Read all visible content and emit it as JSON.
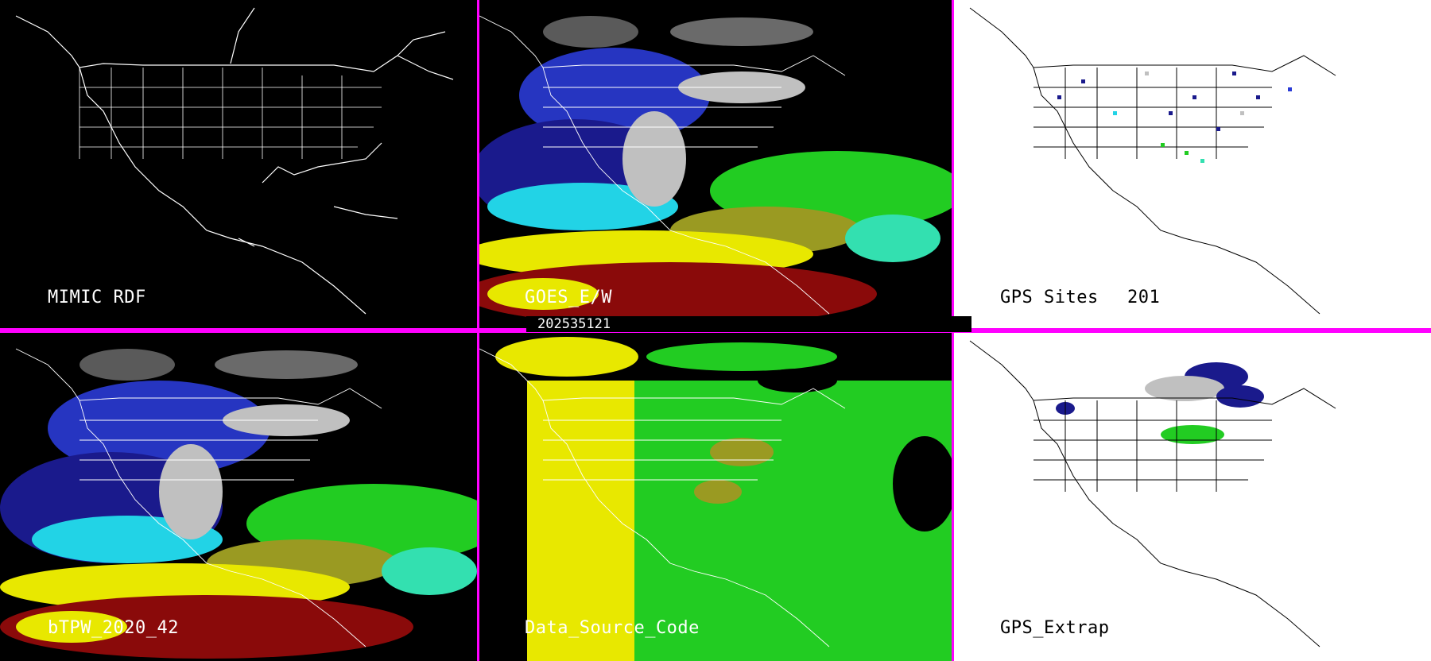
{
  "panels": {
    "mimic_rdf": {
      "label": "MIMIC RDF"
    },
    "goes_ew": {
      "label": "GOES_E/W"
    },
    "gps_sites": {
      "label": "GPS Sites",
      "count": "201"
    },
    "btpw": {
      "label": "bTPW_2020_42"
    },
    "data_source_code": {
      "label": "Data_Source_Code"
    },
    "gps_extrap": {
      "label": "GPS_Extrap"
    }
  },
  "timestamp": "202535121",
  "colors": {
    "separator": "#ff00ff",
    "background_dark": "#000000",
    "background_light": "#ffffff",
    "tpw_scale": [
      "#1a1a8c",
      "#2a3bd6",
      "#22d3e6",
      "#33e0b0",
      "#22cc22",
      "#9a9a22",
      "#e8e800",
      "#8a0a0a",
      "#c0c0c0"
    ]
  },
  "icons": [
    "map-outline",
    "moisture-field",
    "gps-station-marker"
  ]
}
